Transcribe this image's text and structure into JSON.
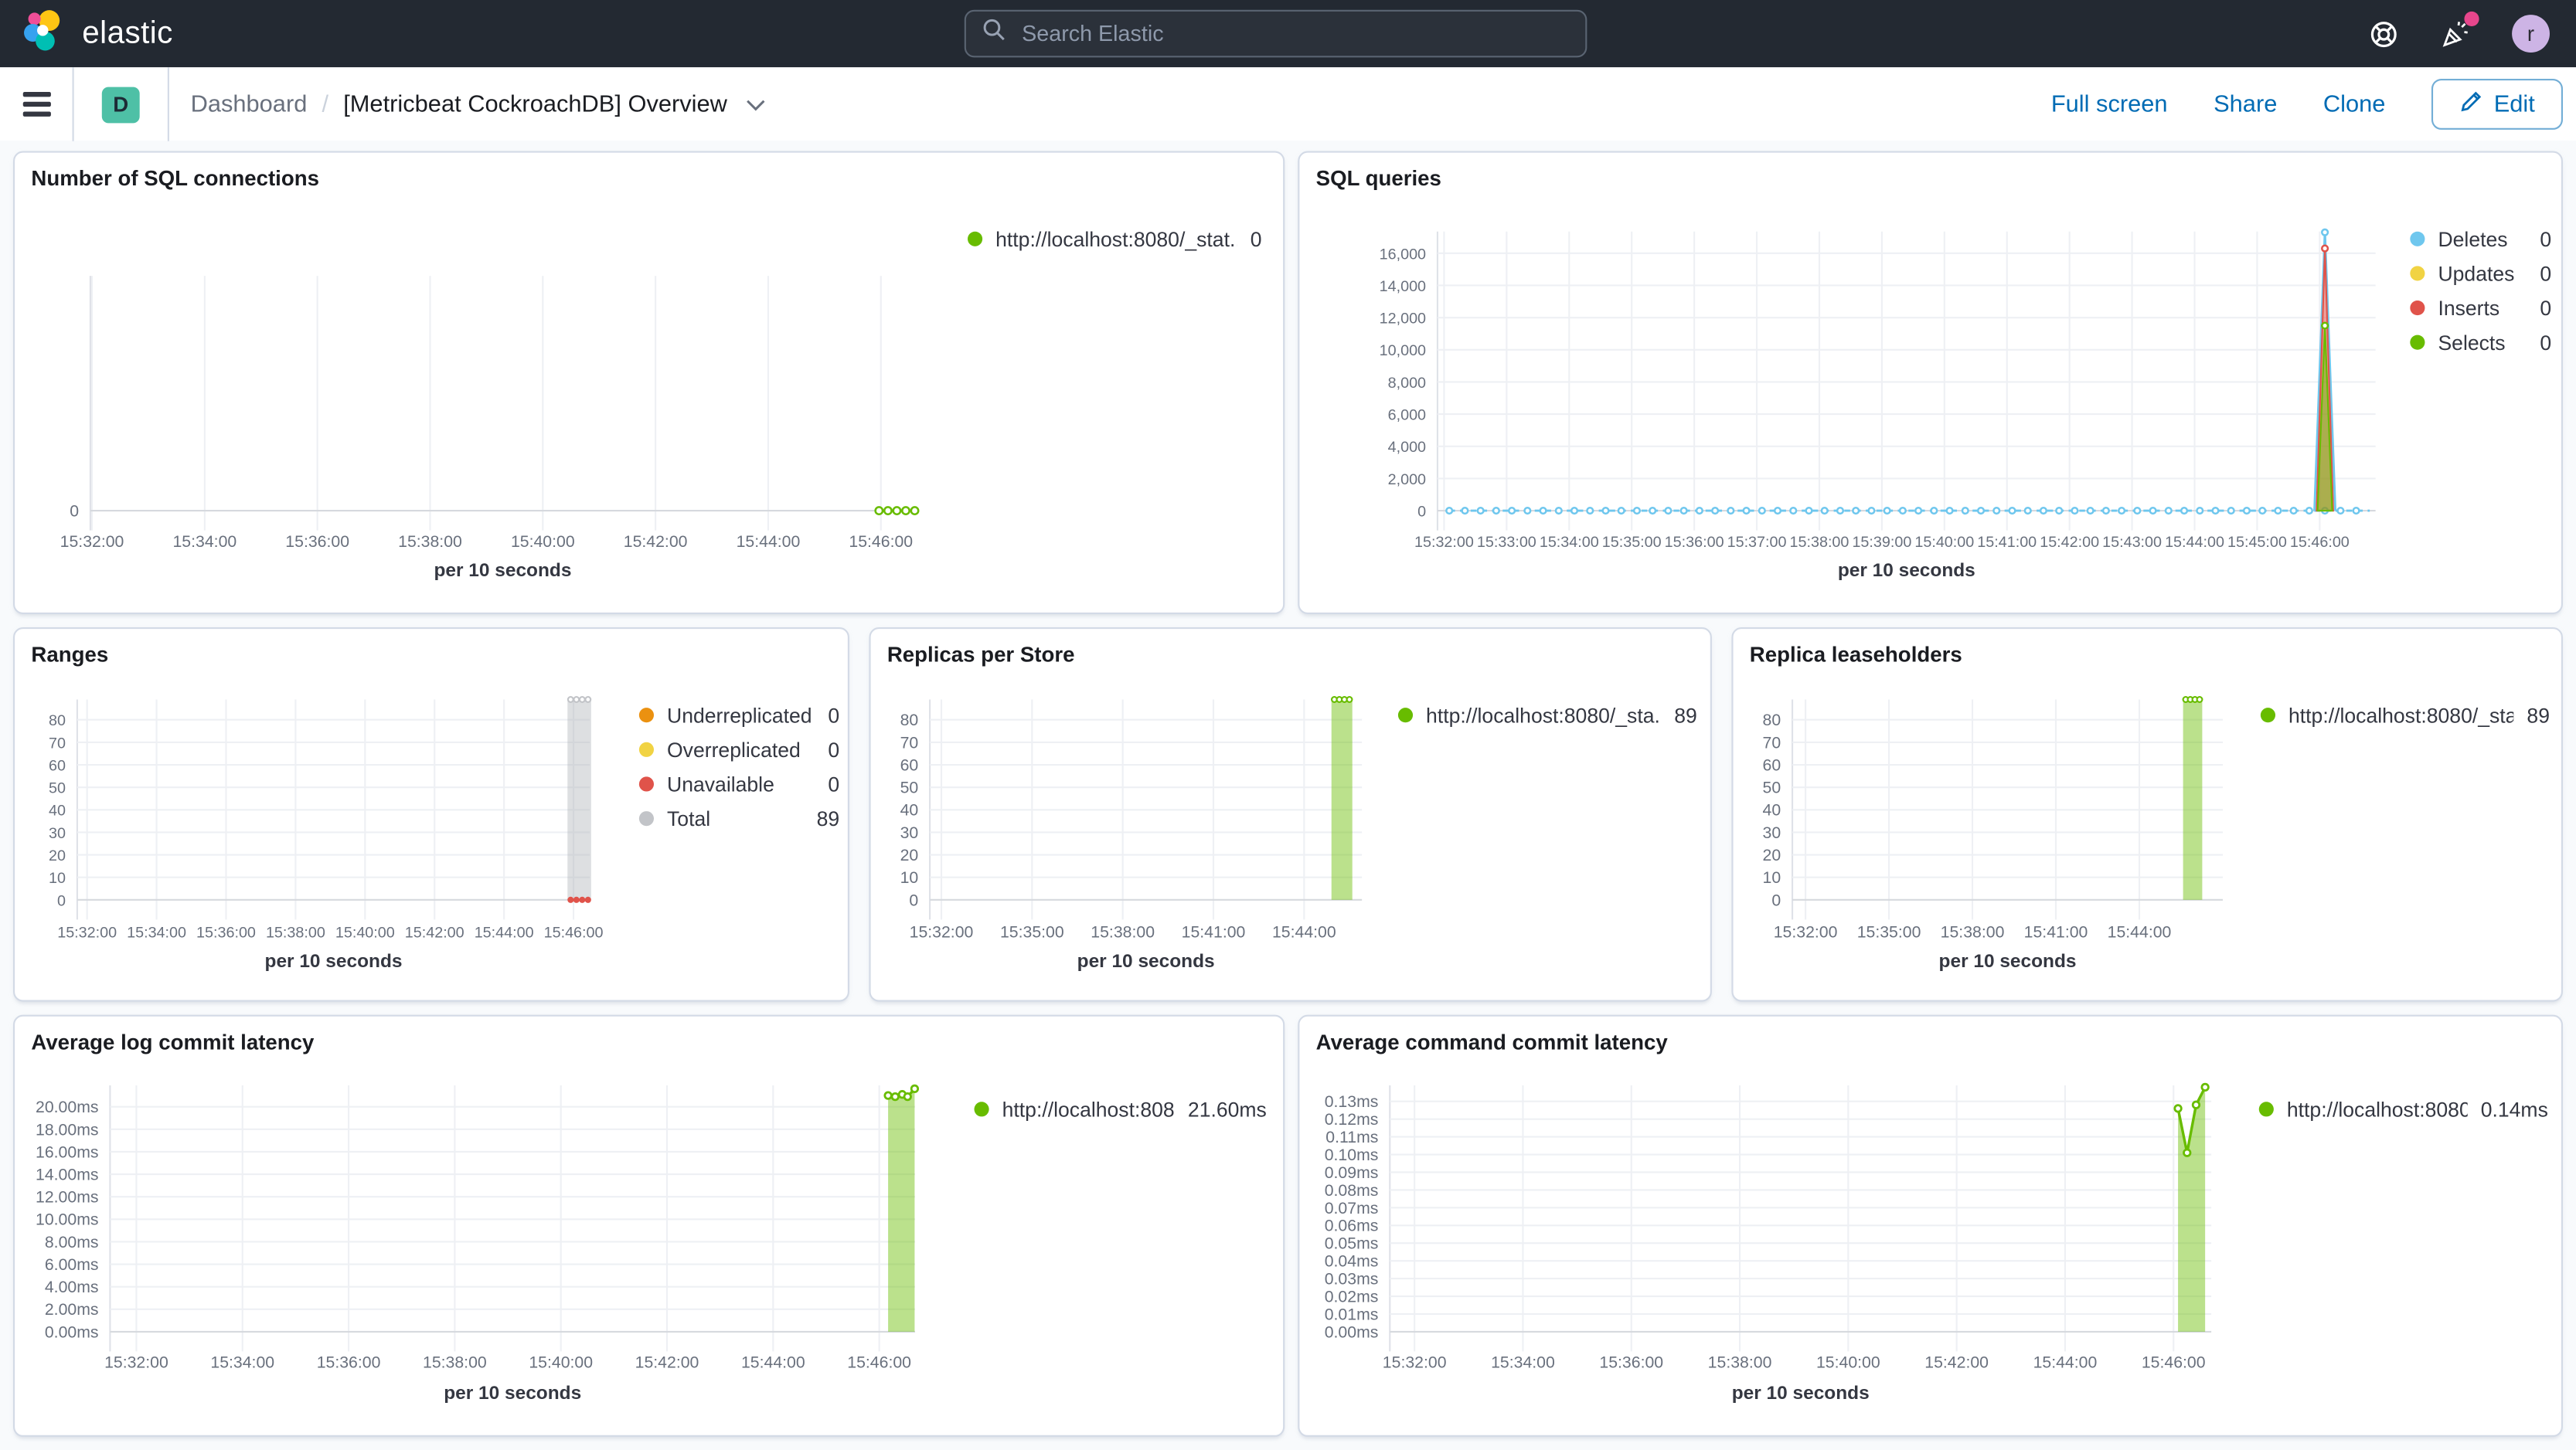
{
  "header": {
    "logo_text": "elastic",
    "search_placeholder": "Search Elastic",
    "avatar_initial": "r"
  },
  "toolbar": {
    "badge": "D",
    "breadcrumb_root": "Dashboard",
    "breadcrumb_sep": "/",
    "title": "[Metricbeat CockroachDB] Overview",
    "actions": {
      "full_screen": "Full screen",
      "share": "Share",
      "clone": "Clone",
      "edit": "Edit"
    }
  },
  "charts": {
    "sql_connections": {
      "type": "line",
      "title": "Number of SQL connections",
      "xlabel": "per 10 seconds",
      "xticks": [
        "15:32:00",
        "15:34:00",
        "15:36:00",
        "15:38:00",
        "15:40:00",
        "15:42:00",
        "15:44:00",
        "15:46:00"
      ],
      "yticks": [
        "0"
      ],
      "ytick_vals": [
        0
      ],
      "ylim": [
        0,
        1
      ],
      "legend": [
        {
          "label": "http://localhost:8080/_stat...",
          "value": "0",
          "color": "#68BC00"
        }
      ],
      "series": [
        {
          "name": "connections",
          "color": "#68BC00",
          "flat": {
            "from": 838,
            "to": 876,
            "step": 9.5,
            "value": 0,
            "mr": 2.2
          }
        }
      ]
    },
    "sql_queries": {
      "type": "line",
      "title": "SQL queries",
      "xlabel": "per 10 seconds",
      "xticks": [
        "15:32:00",
        "15:33:00",
        "15:34:00",
        "15:35:00",
        "15:36:00",
        "15:37:00",
        "15:38:00",
        "15:39:00",
        "15:40:00",
        "15:41:00",
        "15:42:00",
        "15:43:00",
        "15:44:00",
        "15:45:00",
        "15:46:00"
      ],
      "yticks": [
        "0",
        "2,000",
        "4,000",
        "6,000",
        "8,000",
        "10,000",
        "12,000",
        "14,000",
        "16,000"
      ],
      "ytick_vals": [
        0,
        2000,
        4000,
        6000,
        8000,
        10000,
        12000,
        14000,
        16000
      ],
      "ylim": [
        0,
        17350
      ],
      "legend": [
        {
          "label": "Deletes",
          "value": "0",
          "color": "#6FC7EE"
        },
        {
          "label": "Updates",
          "value": "0",
          "color": "#F1D343"
        },
        {
          "label": "Inserts",
          "value": "0",
          "color": "#E0534A"
        },
        {
          "label": "Selects",
          "value": "0",
          "color": "#68BC00"
        }
      ],
      "series": [
        {
          "name": "deletes",
          "color": "#6FC7EE",
          "flat": {
            "from": 5,
            "to": 888,
            "step": 15,
            "value": 0,
            "mr": 1.8
          },
          "spike": [
            [
              835,
              0
            ],
            [
              845,
              17300
            ],
            [
              855,
              0
            ]
          ]
        },
        {
          "name": "inserts",
          "color": "#E0534A",
          "fill": "rgba(224,83,74,0.55)",
          "spike": [
            [
              837,
              0
            ],
            [
              845,
              16300
            ],
            [
              853,
              0
            ]
          ]
        },
        {
          "name": "selects",
          "color": "#68BC00",
          "fill": "rgba(104,188,0,0.5)",
          "spike": [
            [
              838,
              0
            ],
            [
              845,
              11500
            ],
            [
              852,
              0
            ]
          ]
        }
      ]
    },
    "ranges": {
      "type": "bar",
      "title": "Ranges",
      "xlabel": "per 10 seconds",
      "xticks": [
        "15:32:00",
        "15:34:00",
        "15:36:00",
        "15:38:00",
        "15:40:00",
        "15:42:00",
        "15:44:00",
        "15:46:00"
      ],
      "yticks": [
        "0",
        "10",
        "20",
        "30",
        "40",
        "50",
        "60",
        "70",
        "80"
      ],
      "ytick_vals": [
        0,
        10,
        20,
        30,
        40,
        50,
        60,
        70,
        80
      ],
      "ylim": [
        0,
        89
      ],
      "legend": [
        {
          "label": "Underreplicated",
          "value": "0",
          "color": "#EB9110"
        },
        {
          "label": "Overreplicated",
          "value": "0",
          "color": "#F1D343"
        },
        {
          "label": "Unavailable",
          "value": "0",
          "color": "#E0534A"
        },
        {
          "label": "Total",
          "value": "89",
          "color": "#C2C4C8"
        }
      ],
      "series": [
        {
          "name": "total",
          "color": "#C2C4C8",
          "fill": "rgba(171,174,179,0.4)",
          "bars": {
            "t": [
              835,
              845,
              855,
              865
            ],
            "v": 89,
            "w": 3.8,
            "top_markers": true
          }
        },
        {
          "name": "unavailable",
          "color": "#E0534A",
          "dots": {
            "t": [
              835,
              845,
              855,
              865
            ],
            "v": 0
          }
        }
      ]
    },
    "replicas_per_store": {
      "type": "bar",
      "title": "Replicas per Store",
      "xlabel": "per 10 seconds",
      "xticks": [
        "15:32:00",
        "15:35:00",
        "15:38:00",
        "15:41:00",
        "15:44:00"
      ],
      "yticks": [
        "0",
        "10",
        "20",
        "30",
        "40",
        "50",
        "60",
        "70",
        "80"
      ],
      "ytick_vals": [
        0,
        10,
        20,
        30,
        40,
        50,
        60,
        70,
        80
      ],
      "ylim": [
        0,
        89
      ],
      "legend": [
        {
          "label": "http://localhost:8080/_sta...",
          "value": "89",
          "color": "#68BC00"
        }
      ],
      "series": [
        {
          "name": "replicas",
          "color": "#68BC00",
          "fill": "rgba(104,188,0,0.45)",
          "bars": {
            "t": [
              780,
              790,
              800,
              810
            ],
            "v": 89,
            "w": 3.5,
            "top_markers": true
          }
        }
      ]
    },
    "replica_leaseholders": {
      "type": "bar",
      "title": "Replica leaseholders",
      "xlabel": "per 10 seconds",
      "xticks": [
        "15:32:00",
        "15:35:00",
        "15:38:00",
        "15:41:00",
        "15:44:00"
      ],
      "yticks": [
        "0",
        "10",
        "20",
        "30",
        "40",
        "50",
        "60",
        "70",
        "80"
      ],
      "ytick_vals": [
        0,
        10,
        20,
        30,
        40,
        50,
        60,
        70,
        80
      ],
      "ylim": [
        0,
        89
      ],
      "legend": [
        {
          "label": "http://localhost:8080/_sta...",
          "value": "89",
          "color": "#68BC00"
        }
      ],
      "series": [
        {
          "name": "leaseholders",
          "color": "#68BC00",
          "fill": "rgba(104,188,0,0.45)",
          "bars": {
            "t": [
              820,
              830,
              840,
              850
            ],
            "v": 89,
            "w": 3.2,
            "top_markers": true
          }
        }
      ]
    },
    "log_commit_latency": {
      "type": "area",
      "title": "Average log commit latency",
      "xlabel": "per 10 seconds",
      "xticks": [
        "15:32:00",
        "15:34:00",
        "15:36:00",
        "15:38:00",
        "15:40:00",
        "15:42:00",
        "15:44:00",
        "15:46:00"
      ],
      "yticks": [
        "0.00ms",
        "2.00ms",
        "4.00ms",
        "6.00ms",
        "8.00ms",
        "10.00ms",
        "12.00ms",
        "14.00ms",
        "16.00ms",
        "18.00ms",
        "20.00ms"
      ],
      "ytick_vals": [
        0,
        2,
        4,
        6,
        8,
        10,
        12,
        14,
        16,
        18,
        20
      ],
      "ylim": [
        0,
        21.9
      ],
      "legend": [
        {
          "label": "http://localhost:808...",
          "value": "21.60ms",
          "color": "#68BC00"
        }
      ],
      "series": [
        {
          "name": "latency",
          "color": "#68BC00",
          "fill": "rgba(104,188,0,0.45)",
          "area": [
            [
              850,
              21.0
            ],
            [
              858,
              20.9
            ],
            [
              866,
              21.1
            ],
            [
              872,
              20.9
            ],
            [
              880,
              21.6
            ]
          ]
        }
      ]
    },
    "command_commit_latency": {
      "type": "area",
      "title": "Average command commit latency",
      "xlabel": "per 10 seconds",
      "xticks": [
        "15:32:00",
        "15:34:00",
        "15:36:00",
        "15:38:00",
        "15:40:00",
        "15:42:00",
        "15:44:00",
        "15:46:00"
      ],
      "yticks": [
        "0.00ms",
        "0.01ms",
        "0.02ms",
        "0.03ms",
        "0.04ms",
        "0.05ms",
        "0.06ms",
        "0.07ms",
        "0.08ms",
        "0.09ms",
        "0.10ms",
        "0.11ms",
        "0.12ms",
        "0.13ms"
      ],
      "ytick_vals": [
        0,
        0.01,
        0.02,
        0.03,
        0.04,
        0.05,
        0.06,
        0.07,
        0.08,
        0.09,
        0.1,
        0.11,
        0.12,
        0.13
      ],
      "ylim": [
        0,
        0.139
      ],
      "legend": [
        {
          "label": "http://localhost:8080...",
          "value": "0.14ms",
          "color": "#68BC00"
        }
      ],
      "series": [
        {
          "name": "latency",
          "color": "#68BC00",
          "fill": "rgba(104,188,0,0.45)",
          "area": [
            [
              845,
              0.126
            ],
            [
              855,
              0.101
            ],
            [
              865,
              0.128
            ],
            [
              875,
              0.138
            ]
          ]
        }
      ]
    }
  }
}
